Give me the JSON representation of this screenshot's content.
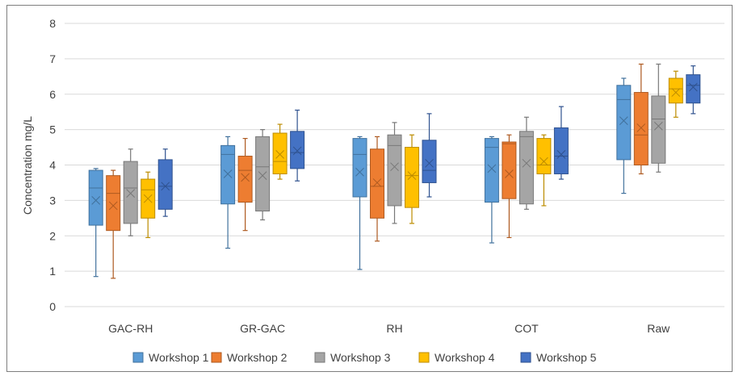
{
  "chart_data": {
    "type": "box",
    "title": "",
    "xlabel": "",
    "ylabel": "Concentration mg/L",
    "ylim": [
      0,
      8
    ],
    "yticks": [
      0,
      1,
      2,
      3,
      4,
      5,
      6,
      7,
      8
    ],
    "grid": true,
    "legend_position": "bottom",
    "categories": [
      "GAC-RH",
      "GR-GAC",
      "RH",
      "COT",
      "Raw"
    ],
    "series": [
      {
        "name": "Workshop 1",
        "color": "#5B9BD5",
        "stroke": "#41719C",
        "boxes": [
          {
            "min": 0.85,
            "q1": 2.3,
            "median": 3.35,
            "q3": 3.85,
            "max": 3.9,
            "mean": 3.0
          },
          {
            "min": 1.65,
            "q1": 2.9,
            "median": 4.3,
            "q3": 4.55,
            "max": 4.8,
            "mean": 3.75
          },
          {
            "min": 1.05,
            "q1": 3.1,
            "median": 4.3,
            "q3": 4.75,
            "max": 4.8,
            "mean": 3.8
          },
          {
            "min": 1.8,
            "q1": 2.95,
            "median": 4.5,
            "q3": 4.75,
            "max": 4.8,
            "mean": 3.9
          },
          {
            "min": 3.2,
            "q1": 4.15,
            "median": 5.85,
            "q3": 6.25,
            "max": 6.45,
            "mean": 5.25
          }
        ]
      },
      {
        "name": "Workshop 2",
        "color": "#ED7D31",
        "stroke": "#AE5A21",
        "boxes": [
          {
            "min": 0.8,
            "q1": 2.15,
            "median": 3.2,
            "q3": 3.7,
            "max": 3.85,
            "mean": 2.85
          },
          {
            "min": 2.15,
            "q1": 2.95,
            "median": 3.85,
            "q3": 4.25,
            "max": 4.75,
            "mean": 3.65
          },
          {
            "min": 1.85,
            "q1": 2.5,
            "median": 3.4,
            "q3": 4.45,
            "max": 4.8,
            "mean": 3.5
          },
          {
            "min": 1.95,
            "q1": 3.05,
            "median": 4.6,
            "q3": 4.65,
            "max": 4.85,
            "mean": 3.75
          },
          {
            "min": 3.75,
            "q1": 4.0,
            "median": 4.85,
            "q3": 6.05,
            "max": 6.85,
            "mean": 5.05
          }
        ]
      },
      {
        "name": "Workshop 3",
        "color": "#A5A5A5",
        "stroke": "#787878",
        "boxes": [
          {
            "min": 2.0,
            "q1": 2.35,
            "median": 3.35,
            "q3": 4.1,
            "max": 4.45,
            "mean": 3.2
          },
          {
            "min": 2.45,
            "q1": 2.7,
            "median": 3.95,
            "q3": 4.8,
            "max": 5.0,
            "mean": 3.7
          },
          {
            "min": 2.35,
            "q1": 2.85,
            "median": 4.55,
            "q3": 4.85,
            "max": 5.2,
            "mean": 3.95
          },
          {
            "min": 2.75,
            "q1": 2.9,
            "median": 4.8,
            "q3": 4.95,
            "max": 5.35,
            "mean": 4.05
          },
          {
            "min": 3.8,
            "q1": 4.05,
            "median": 5.3,
            "q3": 5.95,
            "max": 6.85,
            "mean": 5.1
          }
        ]
      },
      {
        "name": "Workshop 4",
        "color": "#FFC000",
        "stroke": "#BC8C00",
        "boxes": [
          {
            "min": 1.95,
            "q1": 2.5,
            "median": 3.3,
            "q3": 3.6,
            "max": 3.8,
            "mean": 3.05
          },
          {
            "min": 3.6,
            "q1": 3.75,
            "median": 4.1,
            "q3": 4.9,
            "max": 5.15,
            "mean": 4.3
          },
          {
            "min": 2.35,
            "q1": 2.8,
            "median": 3.7,
            "q3": 4.5,
            "max": 4.85,
            "mean": 3.7
          },
          {
            "min": 2.85,
            "q1": 3.75,
            "median": 4.0,
            "q3": 4.75,
            "max": 4.85,
            "mean": 4.1
          },
          {
            "min": 5.35,
            "q1": 5.75,
            "median": 6.15,
            "q3": 6.45,
            "max": 6.65,
            "mean": 6.05
          }
        ]
      },
      {
        "name": "Workshop 5",
        "color": "#4472C4",
        "stroke": "#2F528F",
        "boxes": [
          {
            "min": 2.55,
            "q1": 2.75,
            "median": 3.4,
            "q3": 4.15,
            "max": 4.45,
            "mean": 3.4
          },
          {
            "min": 3.55,
            "q1": 3.9,
            "median": 4.35,
            "q3": 4.95,
            "max": 5.55,
            "mean": 4.4
          },
          {
            "min": 3.1,
            "q1": 3.5,
            "median": 3.85,
            "q3": 4.7,
            "max": 5.45,
            "mean": 4.05
          },
          {
            "min": 3.6,
            "q1": 3.75,
            "median": 4.25,
            "q3": 5.05,
            "max": 5.65,
            "mean": 4.3
          },
          {
            "min": 5.45,
            "q1": 5.75,
            "median": 6.25,
            "q3": 6.55,
            "max": 6.8,
            "mean": 6.2
          }
        ]
      }
    ]
  }
}
